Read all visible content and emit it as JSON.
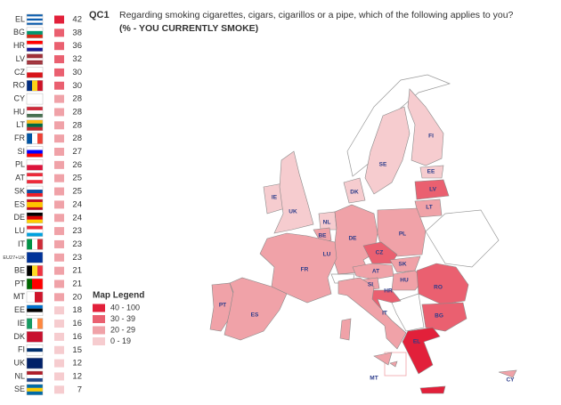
{
  "question_code": "QC1",
  "title": "Regarding smoking cigarettes, cigars, cigarillos or a pipe, which of the following applies to you?",
  "subtitle": "(% - YOU CURRENTLY SMOKE)",
  "ranking": [
    {
      "code": "EL",
      "value": 42,
      "color": "#e2203a"
    },
    {
      "code": "BG",
      "value": 38,
      "color": "#ea6070"
    },
    {
      "code": "HR",
      "value": 36,
      "color": "#ea6070"
    },
    {
      "code": "LV",
      "value": 32,
      "color": "#ea6070"
    },
    {
      "code": "CZ",
      "value": 30,
      "color": "#ea6070"
    },
    {
      "code": "RO",
      "value": 30,
      "color": "#ea6070"
    },
    {
      "code": "CY",
      "value": 28,
      "color": "#f0a2a8"
    },
    {
      "code": "HU",
      "value": 28,
      "color": "#f0a2a8"
    },
    {
      "code": "LT",
      "value": 28,
      "color": "#f0a2a8"
    },
    {
      "code": "FR",
      "value": 28,
      "color": "#f0a2a8"
    },
    {
      "code": "SI",
      "value": 27,
      "color": "#f0a2a8"
    },
    {
      "code": "PL",
      "value": 26,
      "color": "#f0a2a8"
    },
    {
      "code": "AT",
      "value": 25,
      "color": "#f0a2a8"
    },
    {
      "code": "SK",
      "value": 25,
      "color": "#f0a2a8"
    },
    {
      "code": "ES",
      "value": 24,
      "color": "#f0a2a8"
    },
    {
      "code": "DE",
      "value": 24,
      "color": "#f0a2a8"
    },
    {
      "code": "LU",
      "value": 23,
      "color": "#f0a2a8"
    },
    {
      "code": "IT",
      "value": 23,
      "color": "#f0a2a8"
    },
    {
      "code": "EU27+UK",
      "value": 23,
      "color": "#f0a2a8"
    },
    {
      "code": "BE",
      "value": 21,
      "color": "#f0a2a8"
    },
    {
      "code": "PT",
      "value": 21,
      "color": "#f0a2a8"
    },
    {
      "code": "MT",
      "value": 20,
      "color": "#f0a2a8"
    },
    {
      "code": "EE",
      "value": 18,
      "color": "#f6cccf"
    },
    {
      "code": "IE",
      "value": 16,
      "color": "#f6cccf"
    },
    {
      "code": "DK",
      "value": 16,
      "color": "#f6cccf"
    },
    {
      "code": "FI",
      "value": 15,
      "color": "#f6cccf"
    },
    {
      "code": "UK",
      "value": 12,
      "color": "#f6cccf"
    },
    {
      "code": "NL",
      "value": 12,
      "color": "#f6cccf"
    },
    {
      "code": "SE",
      "value": 7,
      "color": "#f6cccf"
    }
  ],
  "legend": {
    "title": "Map Legend",
    "bins": [
      {
        "label": "40 - 100",
        "color": "#e2203a"
      },
      {
        "label": "30 - 39",
        "color": "#ea6070"
      },
      {
        "label": "20 - 29",
        "color": "#f0a2a8"
      },
      {
        "label": "0 - 19",
        "color": "#f6cccf"
      }
    ]
  },
  "map_labels": [
    "FI",
    "SE",
    "EE",
    "LV",
    "LT",
    "DK",
    "IE",
    "UK",
    "NL",
    "BE",
    "LU",
    "DE",
    "PL",
    "CZ",
    "SK",
    "AT",
    "HU",
    "SI",
    "HR",
    "RO",
    "BG",
    "FR",
    "PT",
    "ES",
    "IT",
    "EL",
    "MT",
    "CY"
  ]
}
